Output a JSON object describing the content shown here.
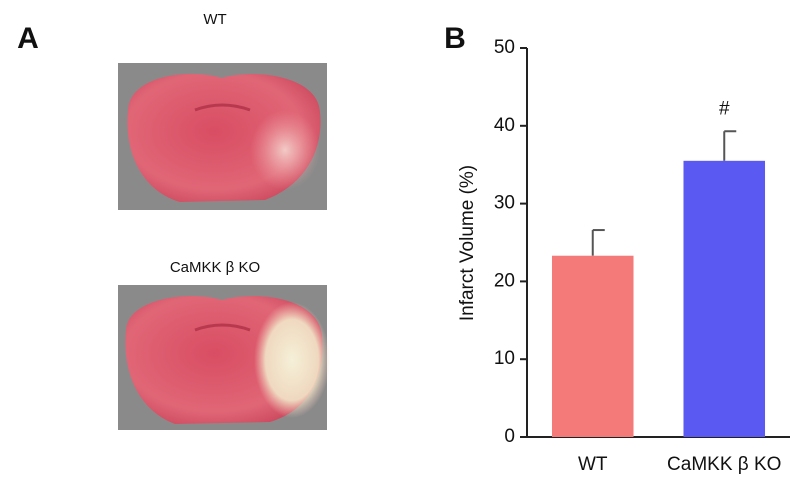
{
  "panel_a": {
    "label": "A",
    "images": [
      {
        "label": "WT"
      },
      {
        "label": "CaMKK β KO"
      }
    ]
  },
  "chart_data": {
    "type": "bar",
    "panel_label": "B",
    "y_label": "Infarct Volume (%)",
    "categories": [
      "WT",
      "CaMKK β KO"
    ],
    "values": [
      23.3,
      35.5
    ],
    "errors": [
      3.3,
      3.8
    ],
    "colors": [
      "#f47a7a",
      "#5a5af2"
    ],
    "value_annotations": [
      null,
      "#"
    ],
    "ylim": [
      0,
      50
    ],
    "yticks": [
      0,
      10,
      20,
      30,
      40,
      50
    ],
    "grid": false
  }
}
